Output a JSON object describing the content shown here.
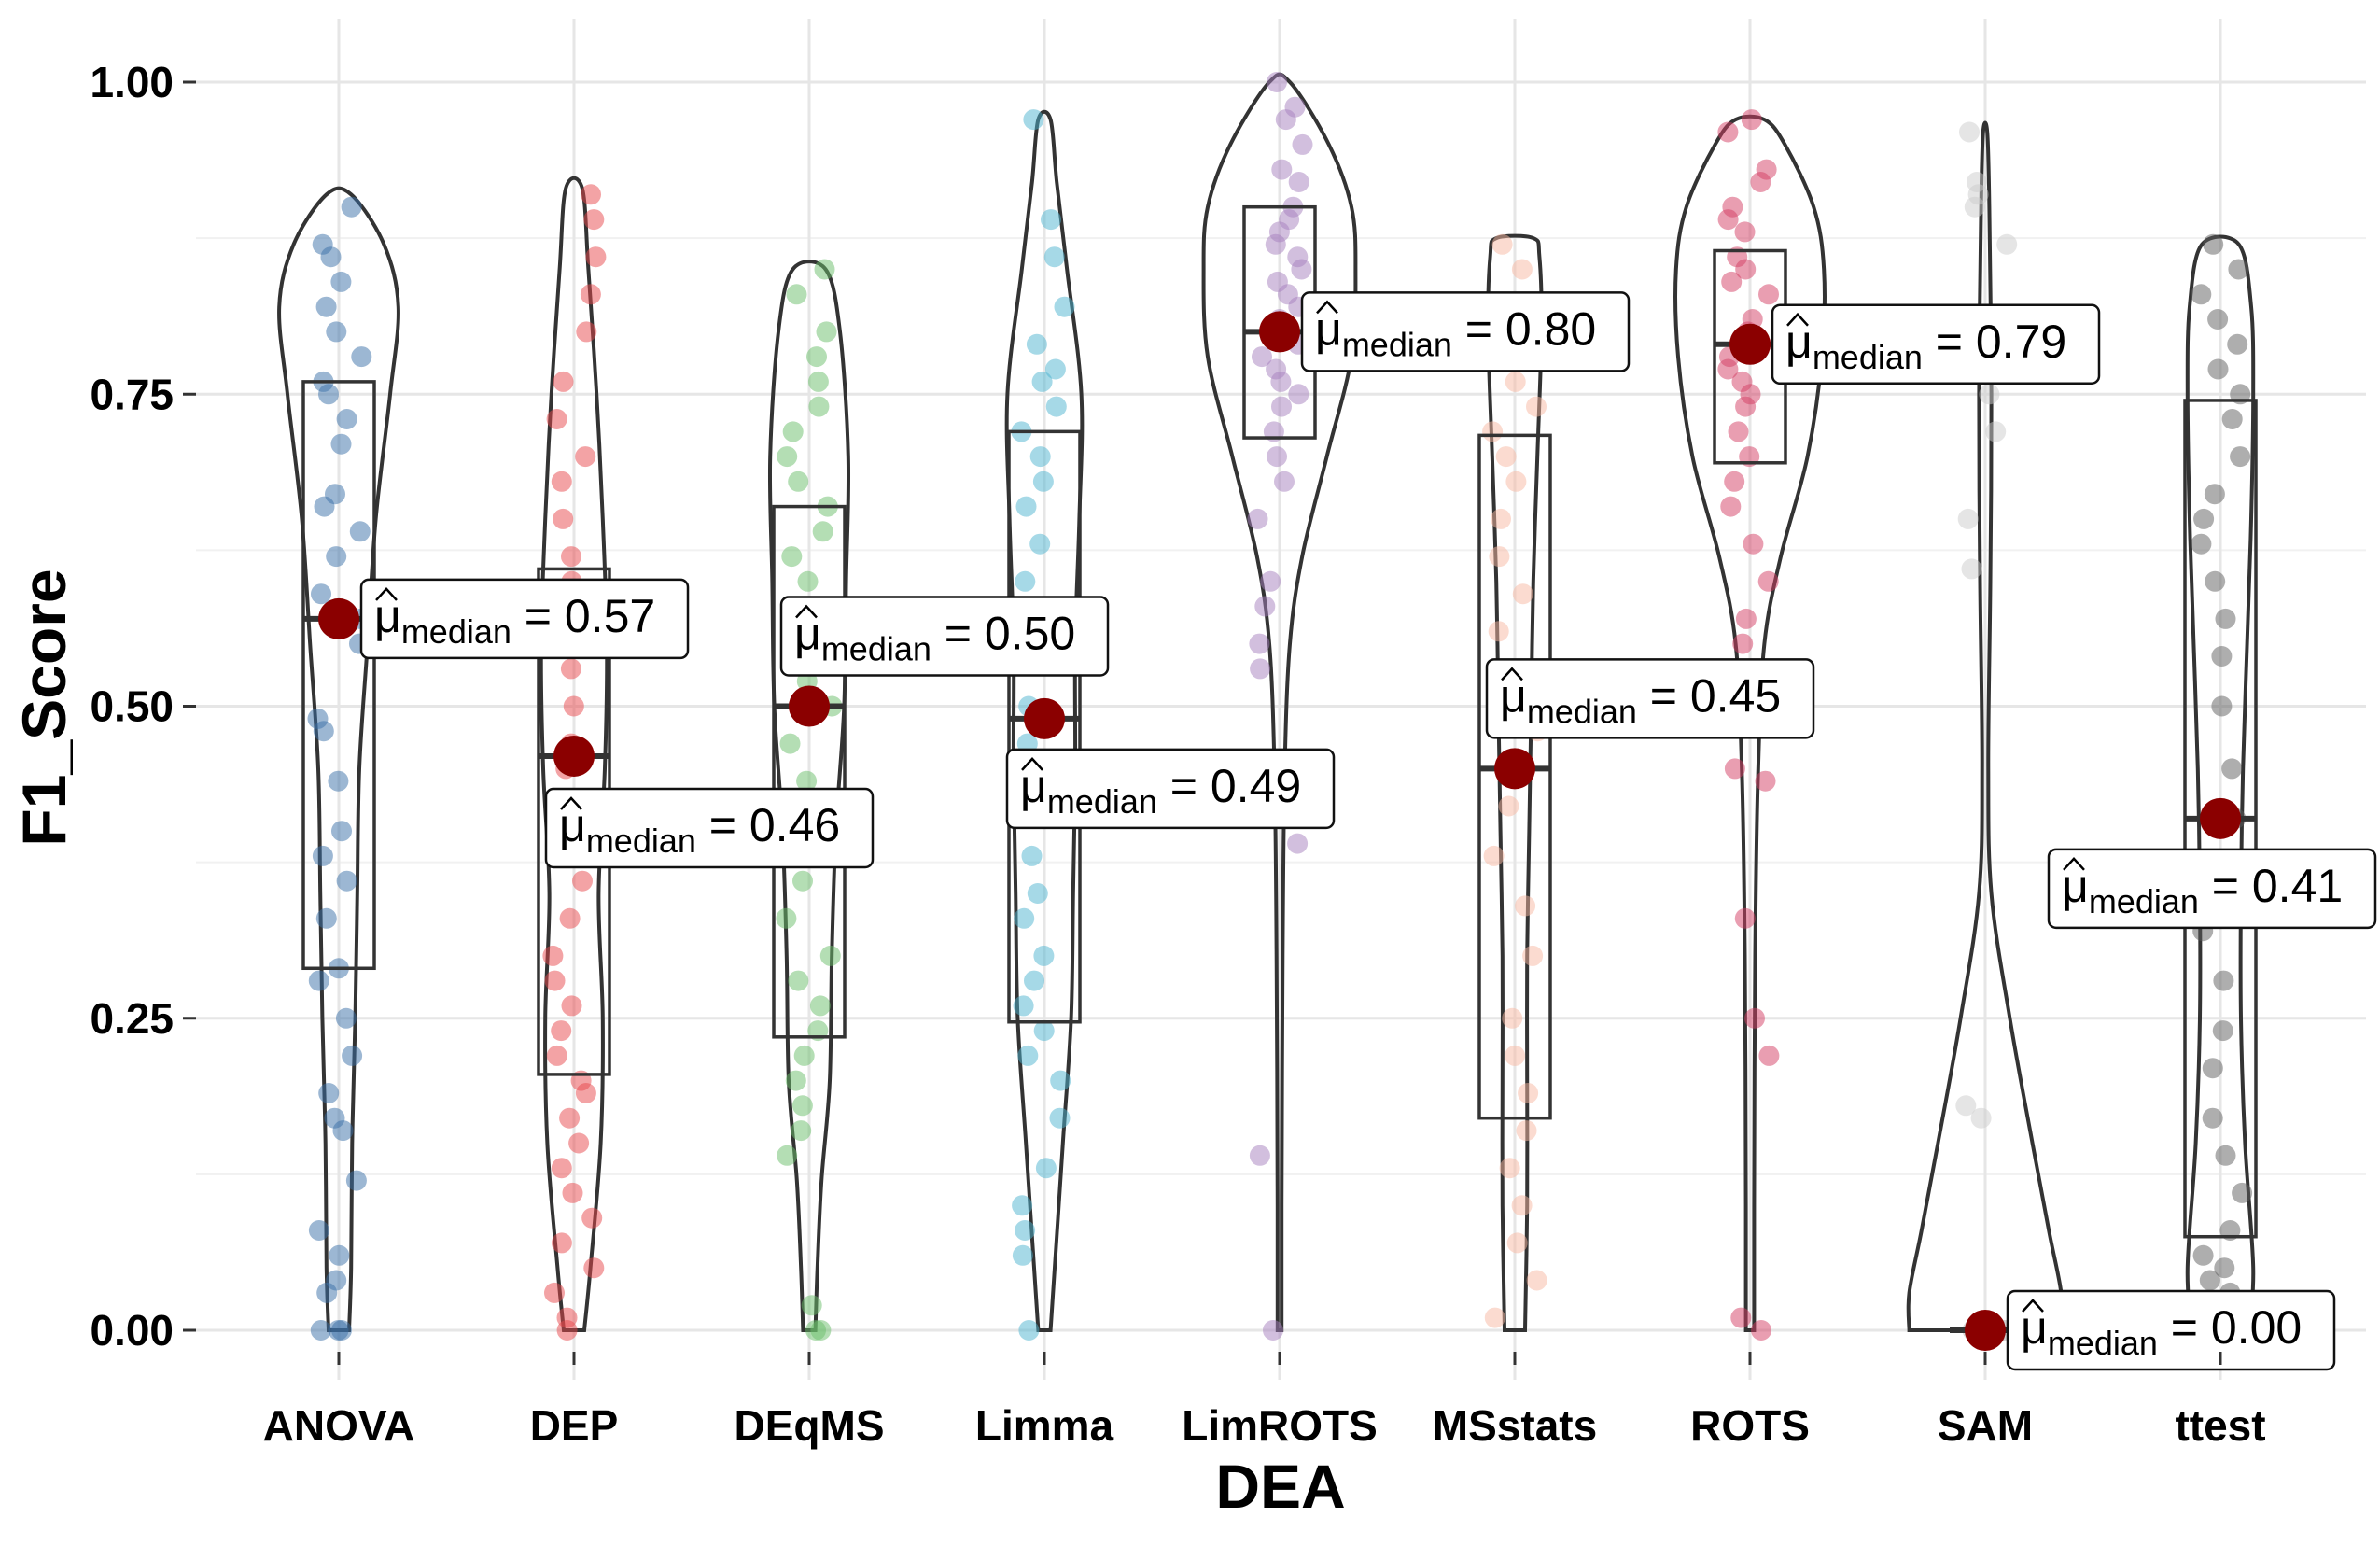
{
  "chart_data": {
    "type": "violin",
    "xlabel": "DEA",
    "ylabel": "F1_Score",
    "ylim": [
      0,
      1
    ],
    "yticks": [
      "0.00",
      "0.25",
      "0.50",
      "0.75",
      "1.00"
    ],
    "grid": true,
    "annotation_prefix": "μ",
    "annotation_subscript": "median",
    "median_marker_color": "#8B0000",
    "categories": [
      "ANOVA",
      "DEP",
      "DEqMS",
      "Limma",
      "LimROTS",
      "MSstats",
      "ROTS",
      "SAM",
      "ttest"
    ],
    "groups": [
      {
        "name": "ANOVA",
        "color": "#3A6FA8",
        "median": 0.57,
        "label": "0.57",
        "q1": 0.29,
        "q3": 0.76,
        "min": 0.0,
        "max": 0.91,
        "points": [
          0.0,
          0.0,
          0.0,
          0.03,
          0.04,
          0.06,
          0.08,
          0.12,
          0.16,
          0.17,
          0.19,
          0.22,
          0.25,
          0.28,
          0.29,
          0.33,
          0.36,
          0.38,
          0.4,
          0.44,
          0.48,
          0.49,
          0.55,
          0.57,
          0.59,
          0.62,
          0.64,
          0.66,
          0.67,
          0.71,
          0.73,
          0.75,
          0.76,
          0.78,
          0.8,
          0.82,
          0.84,
          0.86,
          0.87,
          0.9
        ],
        "density": [
          [
            0.0,
            0.1
          ],
          [
            0.05,
            0.12
          ],
          [
            0.15,
            0.13
          ],
          [
            0.25,
            0.16
          ],
          [
            0.35,
            0.18
          ],
          [
            0.45,
            0.2
          ],
          [
            0.55,
            0.28
          ],
          [
            0.65,
            0.36
          ],
          [
            0.75,
            0.5
          ],
          [
            0.82,
            0.58
          ],
          [
            0.87,
            0.44
          ],
          [
            0.91,
            0.12
          ]
        ]
      },
      {
        "name": "DEP",
        "color": "#E8474C",
        "median": 0.46,
        "label": "0.46",
        "q1": 0.205,
        "q3": 0.61,
        "min": 0.0,
        "max": 0.915,
        "points": [
          0.0,
          0.01,
          0.03,
          0.05,
          0.07,
          0.09,
          0.11,
          0.13,
          0.15,
          0.17,
          0.19,
          0.2,
          0.22,
          0.24,
          0.26,
          0.28,
          0.3,
          0.33,
          0.36,
          0.39,
          0.42,
          0.45,
          0.47,
          0.5,
          0.53,
          0.56,
          0.6,
          0.62,
          0.65,
          0.68,
          0.7,
          0.73,
          0.76,
          0.8,
          0.83,
          0.86,
          0.89,
          0.91
        ],
        "density": [
          [
            0.0,
            0.1
          ],
          [
            0.05,
            0.16
          ],
          [
            0.15,
            0.26
          ],
          [
            0.25,
            0.28
          ],
          [
            0.35,
            0.24
          ],
          [
            0.45,
            0.3
          ],
          [
            0.55,
            0.32
          ],
          [
            0.65,
            0.28
          ],
          [
            0.75,
            0.22
          ],
          [
            0.85,
            0.14
          ],
          [
            0.915,
            0.08
          ]
        ]
      },
      {
        "name": "DEqMS",
        "color": "#6ABD6A",
        "median": 0.5,
        "label": "0.50",
        "q1": 0.235,
        "q3": 0.66,
        "min": 0.0,
        "max": 0.85,
        "points": [
          0.0,
          0.0,
          0.02,
          0.14,
          0.16,
          0.18,
          0.2,
          0.22,
          0.24,
          0.26,
          0.28,
          0.3,
          0.33,
          0.36,
          0.4,
          0.44,
          0.47,
          0.5,
          0.52,
          0.55,
          0.58,
          0.6,
          0.62,
          0.64,
          0.66,
          0.68,
          0.7,
          0.72,
          0.74,
          0.76,
          0.78,
          0.8,
          0.83,
          0.85
        ],
        "density": [
          [
            0.0,
            0.06
          ],
          [
            0.05,
            0.08
          ],
          [
            0.12,
            0.12
          ],
          [
            0.2,
            0.2
          ],
          [
            0.3,
            0.22
          ],
          [
            0.4,
            0.26
          ],
          [
            0.5,
            0.34
          ],
          [
            0.6,
            0.36
          ],
          [
            0.7,
            0.38
          ],
          [
            0.8,
            0.3
          ],
          [
            0.85,
            0.16
          ]
        ]
      },
      {
        "name": "Limma",
        "color": "#4EB3CF",
        "median": 0.49,
        "label": "0.49",
        "q1": 0.247,
        "q3": 0.72,
        "min": 0.0,
        "max": 0.97,
        "points": [
          0.0,
          0.06,
          0.08,
          0.1,
          0.13,
          0.17,
          0.2,
          0.22,
          0.24,
          0.26,
          0.28,
          0.3,
          0.33,
          0.35,
          0.38,
          0.41,
          0.44,
          0.47,
          0.5,
          0.54,
          0.57,
          0.6,
          0.63,
          0.66,
          0.68,
          0.7,
          0.72,
          0.74,
          0.76,
          0.77,
          0.79,
          0.82,
          0.86,
          0.89,
          0.97
        ],
        "density": [
          [
            0.0,
            0.06
          ],
          [
            0.05,
            0.1
          ],
          [
            0.15,
            0.18
          ],
          [
            0.25,
            0.26
          ],
          [
            0.35,
            0.28
          ],
          [
            0.45,
            0.3
          ],
          [
            0.55,
            0.3
          ],
          [
            0.65,
            0.34
          ],
          [
            0.75,
            0.36
          ],
          [
            0.85,
            0.22
          ],
          [
            0.92,
            0.12
          ],
          [
            0.97,
            0.06
          ]
        ]
      },
      {
        "name": "LimROTS",
        "color": "#A57FBE",
        "median": 0.8,
        "label": "0.80",
        "q1": 0.715,
        "q3": 0.9,
        "min": 0.0,
        "max": 1.0,
        "points": [
          0.0,
          0.14,
          0.39,
          0.53,
          0.55,
          0.58,
          0.6,
          0.65,
          0.68,
          0.7,
          0.72,
          0.74,
          0.75,
          0.76,
          0.77,
          0.78,
          0.79,
          0.8,
          0.81,
          0.82,
          0.83,
          0.84,
          0.85,
          0.86,
          0.87,
          0.88,
          0.89,
          0.9,
          0.92,
          0.93,
          0.95,
          0.97,
          0.98,
          1.0
        ],
        "density": [
          [
            0.0,
            0.02
          ],
          [
            0.1,
            0.02
          ],
          [
            0.3,
            0.03
          ],
          [
            0.45,
            0.05
          ],
          [
            0.55,
            0.1
          ],
          [
            0.62,
            0.22
          ],
          [
            0.7,
            0.46
          ],
          [
            0.78,
            0.7
          ],
          [
            0.85,
            0.74
          ],
          [
            0.9,
            0.7
          ],
          [
            0.95,
            0.48
          ],
          [
            1.0,
            0.1
          ]
        ]
      },
      {
        "name": "MSstats",
        "color": "#F7B8A2",
        "median": 0.45,
        "label": "0.45",
        "q1": 0.17,
        "q3": 0.717,
        "min": 0.0,
        "max": 0.875,
        "points": [
          0.01,
          0.04,
          0.07,
          0.1,
          0.13,
          0.16,
          0.19,
          0.22,
          0.25,
          0.3,
          0.34,
          0.38,
          0.42,
          0.45,
          0.48,
          0.52,
          0.56,
          0.59,
          0.62,
          0.65,
          0.68,
          0.7,
          0.72,
          0.74,
          0.76,
          0.78,
          0.8,
          0.82,
          0.85,
          0.87
        ],
        "density": [
          [
            0.0,
            0.1
          ],
          [
            0.1,
            0.12
          ],
          [
            0.2,
            0.12
          ],
          [
            0.3,
            0.12
          ],
          [
            0.4,
            0.14
          ],
          [
            0.5,
            0.16
          ],
          [
            0.6,
            0.18
          ],
          [
            0.7,
            0.22
          ],
          [
            0.8,
            0.26
          ],
          [
            0.86,
            0.24
          ],
          [
            0.875,
            0.18
          ]
        ]
      },
      {
        "name": "ROTS",
        "color": "#D43E63",
        "median": 0.79,
        "label": "0.79",
        "q1": 0.695,
        "q3": 0.865,
        "min": 0.0,
        "max": 0.97,
        "points": [
          0.0,
          0.01,
          0.22,
          0.25,
          0.33,
          0.44,
          0.45,
          0.55,
          0.57,
          0.6,
          0.63,
          0.66,
          0.68,
          0.7,
          0.72,
          0.74,
          0.75,
          0.76,
          0.77,
          0.78,
          0.79,
          0.8,
          0.81,
          0.83,
          0.84,
          0.85,
          0.86,
          0.88,
          0.89,
          0.9,
          0.92,
          0.93,
          0.96,
          0.97
        ],
        "density": [
          [
            0.0,
            0.04
          ],
          [
            0.1,
            0.04
          ],
          [
            0.3,
            0.05
          ],
          [
            0.45,
            0.08
          ],
          [
            0.55,
            0.14
          ],
          [
            0.62,
            0.3
          ],
          [
            0.7,
            0.56
          ],
          [
            0.78,
            0.7
          ],
          [
            0.85,
            0.72
          ],
          [
            0.9,
            0.62
          ],
          [
            0.95,
            0.34
          ],
          [
            0.97,
            0.14
          ]
        ]
      },
      {
        "name": "SAM",
        "color": "#CCCCCC",
        "median": 0.0,
        "label": "0.00",
        "q1": 0.0,
        "q3": 0.0,
        "min": 0.0,
        "max": 0.96,
        "points": [
          0.0,
          0.0,
          0.0,
          0.0,
          0.0,
          0.0,
          0.0,
          0.0,
          0.0,
          0.0,
          0.0,
          0.0,
          0.17,
          0.18,
          0.61,
          0.65,
          0.72,
          0.75,
          0.87,
          0.9,
          0.91,
          0.92,
          0.96
        ],
        "density": [
          [
            0.0,
            0.74
          ],
          [
            0.03,
            0.74
          ],
          [
            0.08,
            0.62
          ],
          [
            0.15,
            0.46
          ],
          [
            0.25,
            0.24
          ],
          [
            0.35,
            0.06
          ],
          [
            0.45,
            0.03
          ],
          [
            0.6,
            0.05
          ],
          [
            0.75,
            0.06
          ],
          [
            0.9,
            0.04
          ],
          [
            0.96,
            0.02
          ]
        ]
      },
      {
        "name": "ttest",
        "color": "#5E5E5E",
        "median": 0.41,
        "label": "0.41",
        "q1": 0.075,
        "q3": 0.745,
        "min": 0.0,
        "max": 0.87,
        "points": [
          0.0,
          0.01,
          0.02,
          0.03,
          0.04,
          0.05,
          0.06,
          0.08,
          0.11,
          0.14,
          0.17,
          0.21,
          0.24,
          0.28,
          0.32,
          0.36,
          0.41,
          0.45,
          0.5,
          0.54,
          0.57,
          0.6,
          0.63,
          0.65,
          0.67,
          0.7,
          0.73,
          0.75,
          0.77,
          0.79,
          0.81,
          0.83,
          0.85,
          0.87
        ],
        "density": [
          [
            0.0,
            0.28
          ],
          [
            0.05,
            0.32
          ],
          [
            0.15,
            0.24
          ],
          [
            0.25,
            0.2
          ],
          [
            0.35,
            0.2
          ],
          [
            0.45,
            0.22
          ],
          [
            0.55,
            0.26
          ],
          [
            0.65,
            0.3
          ],
          [
            0.75,
            0.32
          ],
          [
            0.82,
            0.3
          ],
          [
            0.87,
            0.18
          ]
        ]
      }
    ],
    "annotations": [
      {
        "group": "ANOVA",
        "side": "right",
        "dy": 0
      },
      {
        "group": "DEP",
        "side": "below",
        "dy": 65
      },
      {
        "group": "DEqMS",
        "side": "above",
        "dy": -65
      },
      {
        "group": "Limma",
        "side": "below-left",
        "dy": 65
      },
      {
        "group": "LimROTS",
        "side": "right",
        "dy": 0
      },
      {
        "group": "MSstats",
        "side": "above",
        "dy": -65
      },
      {
        "group": "ROTS",
        "side": "right",
        "dy": 0
      },
      {
        "group": "SAM",
        "side": "right",
        "dy": 0
      },
      {
        "group": "ttest",
        "side": "below-left",
        "dy": 65
      }
    ]
  }
}
